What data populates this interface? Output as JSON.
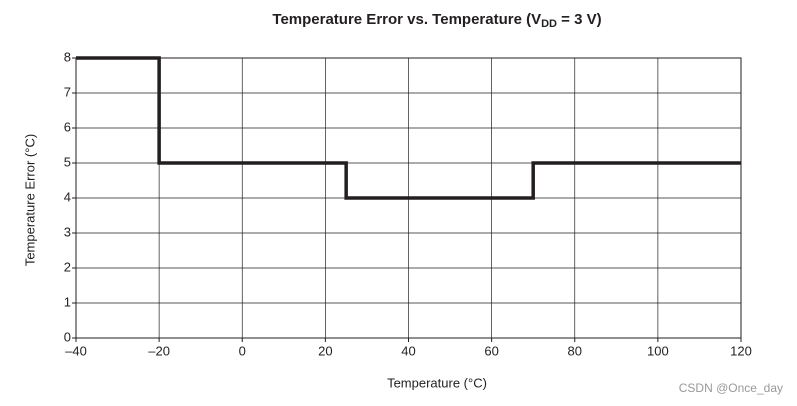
{
  "chart_data": {
    "type": "line",
    "title": "Temperature Error vs. Temperature (V",
    "title_subscript": "DD",
    "title_end": " = 3 V)",
    "x_label": "Temperature (°C)",
    "y_label": "Temperature Error (°C)",
    "watermark": "CSDN @Once_day",
    "x": [
      -40,
      -20,
      -20,
      25,
      25,
      70,
      70,
      120
    ],
    "values": [
      8,
      8,
      5,
      5,
      4,
      4,
      5,
      5
    ],
    "color": "#231f20",
    "xlim": [
      -40,
      120
    ],
    "xticks": [
      {
        "value": -40,
        "label": "–40"
      },
      {
        "value": -20,
        "label": "–20"
      },
      0,
      20,
      40,
      60,
      80,
      100,
      120
    ],
    "ylim": [
      0,
      8
    ],
    "yticks": [
      0,
      1,
      2,
      3,
      4,
      5,
      6,
      7,
      8
    ],
    "grid": true
  }
}
